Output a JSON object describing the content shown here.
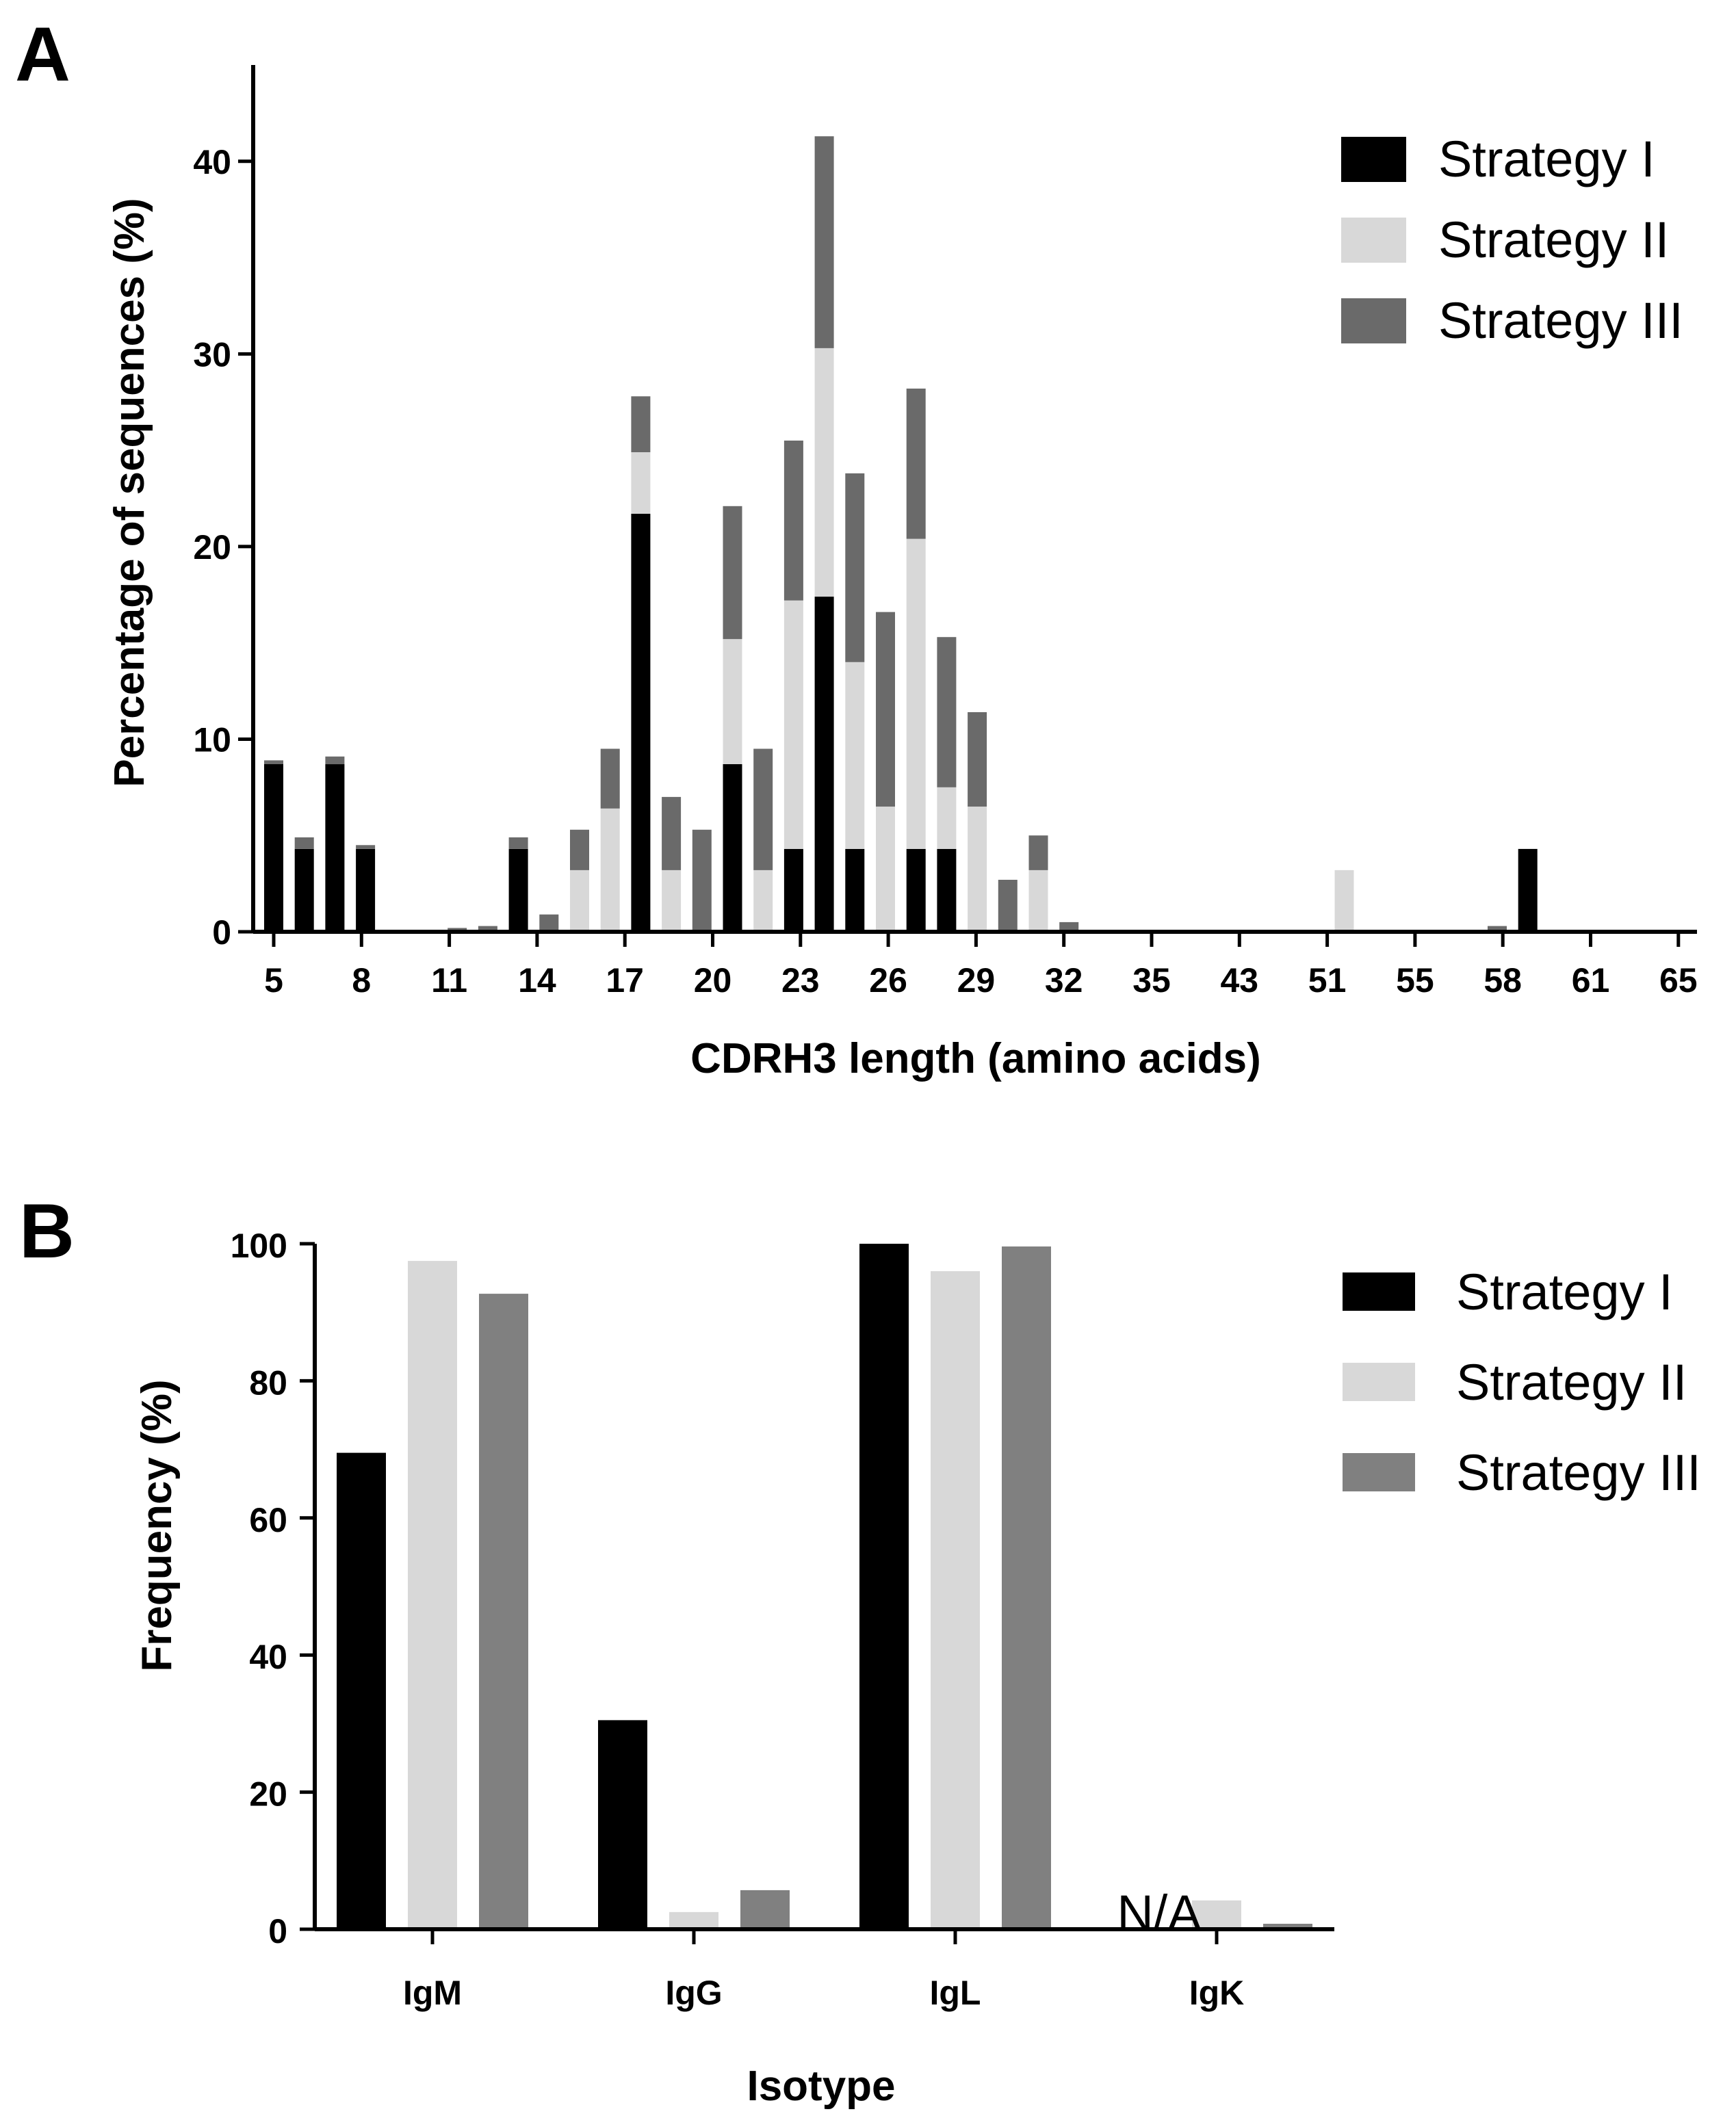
{
  "panels": [
    {
      "letter": "A",
      "chart_data": {
        "type": "bar",
        "stacked": true,
        "title": "",
        "xlabel": "CDRH3 length (amino acids)",
        "ylabel": "Percentage of sequences (%)",
        "ylim": [
          0,
          45
        ],
        "yticks": [
          0,
          10,
          20,
          30,
          40
        ],
        "xtick_labels": [
          "5",
          "8",
          "11",
          "14",
          "17",
          "20",
          "23",
          "26",
          "29",
          "32",
          "35",
          "43",
          "51",
          "55",
          "58",
          "61",
          "65"
        ],
        "legend_position": "top-right",
        "categories": [
          "5",
          "6",
          "7",
          "8",
          "9",
          "10",
          "11",
          "12",
          "13",
          "14",
          "15",
          "16",
          "17",
          "18",
          "19",
          "20",
          "21",
          "22",
          "23",
          "24",
          "25",
          "26",
          "27",
          "28",
          "29",
          "30",
          "31",
          "32",
          "33",
          "34",
          "35",
          "36",
          "43",
          "45",
          "51",
          "53",
          "55",
          "56",
          "58",
          "60",
          "61",
          "64",
          "65"
        ],
        "series": [
          {
            "name": "Strategy I",
            "color": "#000000",
            "values": [
              8.7,
              4.3,
              8.7,
              4.3,
              0,
              0,
              0,
              0,
              4.3,
              0,
              0,
              0,
              21.7,
              0,
              0,
              8.7,
              0,
              4.3,
              17.4,
              4.3,
              0,
              4.3,
              4.3,
              0,
              0,
              0,
              0,
              0,
              0,
              0,
              0,
              0,
              0,
              0,
              0,
              0,
              0,
              0,
              0,
              0,
              0,
              4.3,
              0
            ]
          },
          {
            "name": "Strategy II",
            "color": "#d8d8d8",
            "values": [
              0,
              0,
              0,
              0,
              0,
              0,
              0.1,
              0,
              0,
              0,
              3.2,
              6.4,
              3.2,
              3.2,
              0,
              6.5,
              3.2,
              12.9,
              12.9,
              9.7,
              6.5,
              16.1,
              3.2,
              6.5,
              0,
              3.2,
              0,
              0,
              0,
              0,
              0,
              0,
              0,
              0,
              0,
              3.2,
              0,
              0,
              0,
              0,
              0,
              0,
              0
            ]
          },
          {
            "name": "Strategy III",
            "color": "#6a6a6a",
            "values": [
              0.2,
              0.6,
              0.4,
              0.2,
              0,
              0,
              0.1,
              0.3,
              0.6,
              0.9,
              2.1,
              3.1,
              2.9,
              3.8,
              5.3,
              6.9,
              6.3,
              8.3,
              11.0,
              9.8,
              10.1,
              7.8,
              7.8,
              4.9,
              2.7,
              1.8,
              0.5,
              0.1,
              0,
              0,
              0,
              0,
              0,
              0,
              0,
              0,
              0,
              0,
              0,
              0,
              0.3,
              0,
              0
            ]
          }
        ]
      }
    },
    {
      "letter": "B",
      "chart_data": {
        "type": "bar",
        "stacked": false,
        "title": "",
        "xlabel": "Isotype",
        "ylabel": "Frequency (%)",
        "ylim": [
          0,
          100
        ],
        "yticks": [
          0,
          20,
          40,
          60,
          80,
          100
        ],
        "legend_position": "top-right",
        "categories": [
          "IgM",
          "IgG",
          "IgL",
          "IgK"
        ],
        "series": [
          {
            "name": "Strategy I",
            "color": "#000000",
            "values": [
              69.5,
              30.5,
              100,
              null
            ]
          },
          {
            "name": "Strategy II",
            "color": "#d8d8d8",
            "values": [
              97.5,
              2.5,
              96,
              4.2
            ]
          },
          {
            "name": "Strategy III",
            "color": "#808080",
            "values": [
              92.7,
              5.7,
              99.6,
              0.8
            ]
          }
        ],
        "annotations": [
          {
            "category": "IgK",
            "series": "Strategy I",
            "text": "N/A"
          }
        ]
      }
    }
  ]
}
